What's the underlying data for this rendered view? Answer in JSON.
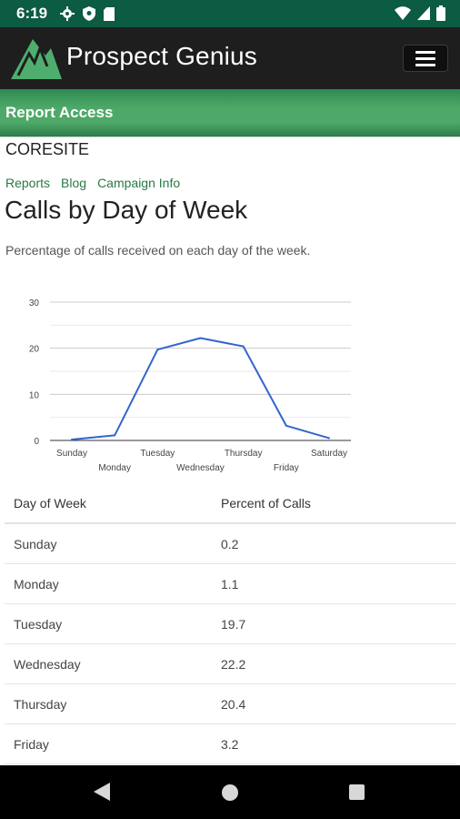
{
  "status_bar": {
    "time": "6:19",
    "icons_left": [
      "settings-icon",
      "shield-icon",
      "sd-card-icon"
    ],
    "icons_right": [
      "wifi-icon",
      "signal-icon",
      "battery-icon"
    ]
  },
  "header": {
    "brand": "Prospect Genius",
    "menu_icon": "hamburger-menu-icon",
    "colors": {
      "header_bg": "#1e1e1e",
      "status_bg": "#0c5b43",
      "accent_green": "#4ea968"
    }
  },
  "report_access": {
    "title": "Report Access"
  },
  "site": {
    "name": "CORESITE"
  },
  "nav_links": [
    {
      "label": "Reports"
    },
    {
      "label": "Blog"
    },
    {
      "label": "Campaign Info"
    }
  ],
  "page": {
    "title": "Calls by Day of Week",
    "description": "Percentage of calls received on each day of the week."
  },
  "chart_data": {
    "type": "line",
    "categories": [
      "Sunday",
      "Monday",
      "Tuesday",
      "Wednesday",
      "Thursday",
      "Friday",
      "Saturday"
    ],
    "values": [
      0.2,
      1.1,
      19.7,
      22.2,
      20.4,
      3.2,
      0.5
    ],
    "ylim": [
      0,
      30
    ],
    "yticks": [
      0,
      10,
      20,
      30
    ],
    "grid": true,
    "line_color": "#3366cc",
    "legend": "none"
  },
  "table": {
    "headers": [
      "Day of Week",
      "Percent of Calls"
    ],
    "rows": [
      [
        "Sunday",
        "0.2"
      ],
      [
        "Monday",
        "1.1"
      ],
      [
        "Tuesday",
        "19.7"
      ],
      [
        "Wednesday",
        "22.2"
      ],
      [
        "Thursday",
        "20.4"
      ],
      [
        "Friday",
        "3.2"
      ]
    ]
  },
  "system_nav": {
    "icons": [
      "back-icon",
      "home-icon",
      "recents-icon"
    ]
  }
}
